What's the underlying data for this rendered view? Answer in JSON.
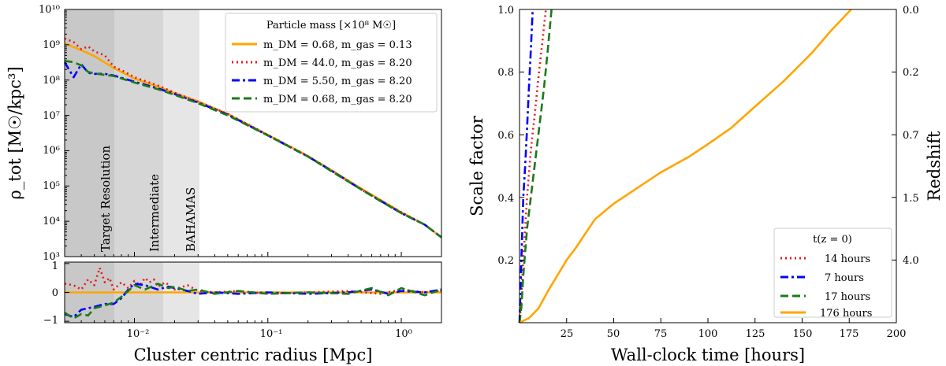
{
  "left_panel": {
    "ylabel": "ρ_tot [M☉/kpc³]",
    "xlabel": "Cluster centric radius [Mpc]",
    "ytick_labels": [
      "10³",
      "10⁴",
      "10⁵",
      "10⁶",
      "10⁷",
      "10⁸",
      "10⁹",
      "10¹⁰"
    ],
    "xtick_labels": [
      "10⁻²",
      "10⁻¹",
      "10⁰"
    ],
    "residual_ytick_labels": [
      "1",
      "0",
      "−1"
    ],
    "regions": [
      {
        "label": "Target Resolution",
        "x_range_mpc": [
          0.003,
          0.0075
        ],
        "color": "#c8c8c8"
      },
      {
        "label": "Intermediate",
        "x_range_mpc": [
          0.0075,
          0.0165
        ],
        "color": "#d6d6d6"
      },
      {
        "label": "BAHAMAS",
        "x_range_mpc": [
          0.0165,
          0.032
        ],
        "color": "#e6e6e6"
      }
    ],
    "legend": {
      "title": "Particle mass [×10⁸ M☉]",
      "entries": [
        "m_DM = 0.68, m_gas = 0.13",
        "m_DM = 44.0, m_gas = 8.20",
        "m_DM = 5.50, m_gas = 8.20",
        "m_DM = 0.68, m_gas = 8.20"
      ]
    }
  },
  "right_panel": {
    "ylabel_left": "Scale factor",
    "ylabel_right": "Redshift",
    "xlabel": "Wall-clock time [hours]",
    "xtick_labels": [
      "25",
      "50",
      "75",
      "100",
      "125",
      "150",
      "175",
      "200"
    ],
    "ytick_labels": [
      "0.2",
      "0.4",
      "0.6",
      "0.8",
      "1.0"
    ],
    "redshift_tick_labels": [
      "0.0",
      "0.2",
      "0.7",
      "1.5",
      "4.0"
    ],
    "legend": {
      "title": "t(z = 0)",
      "entries": [
        "14 hours",
        "7 hours",
        "17 hours",
        "176 hours"
      ]
    }
  },
  "colors": {
    "orange": "#ffa500",
    "red": "#e41a1c",
    "blue": "#0000ff",
    "green": "#1a7a1a"
  },
  "chart_data": [
    {
      "type": "line",
      "title": "",
      "xlabel": "Cluster centric radius [Mpc]",
      "ylabel": "ρ_tot [M☉/kpc³]",
      "xscale": "log",
      "yscale": "log",
      "xlim": [
        0.003,
        2.0
      ],
      "ylim": [
        1000,
        10000000000
      ],
      "legend_placement": "top-right",
      "series": [
        {
          "name": "m_DM = 0.68, m_gas = 0.13",
          "color": "orange",
          "style": "solid",
          "x": [
            0.003,
            0.004,
            0.005,
            0.007,
            0.01,
            0.015,
            0.02,
            0.03,
            0.05,
            0.1,
            0.2,
            0.3,
            0.5,
            0.7,
            1.0,
            1.5,
            2.0
          ],
          "y": [
            1100000000.0,
            700000000.0,
            480000000.0,
            220000000.0,
            110000000.0,
            65000000.0,
            43000000.0,
            25000000.0,
            11000000.0,
            2800000.0,
            700000.0,
            280000.0,
            85000.0,
            40000.0,
            18000.0,
            8000.0,
            3500.0
          ]
        },
        {
          "name": "m_DM = 44.0, m_gas = 8.20",
          "color": "red",
          "style": "dotted",
          "x": [
            0.003,
            0.0035,
            0.004,
            0.0045,
            0.005,
            0.006,
            0.007,
            0.0085,
            0.01,
            0.015,
            0.02,
            0.03,
            0.05,
            0.1,
            0.2,
            0.3,
            0.5,
            0.7,
            1.0,
            1.5,
            2.0
          ],
          "y": [
            1500000000.0,
            1200000000.0,
            750000000.0,
            900000000.0,
            650000000.0,
            500000000.0,
            240000000.0,
            170000000.0,
            120000000.0,
            70000000.0,
            44000000.0,
            24000000.0,
            11000000.0,
            2800000.0,
            700000.0,
            270000.0,
            80000.0,
            38000.0,
            18000.0,
            8000.0,
            3500.0
          ]
        },
        {
          "name": "m_DM = 5.50, m_gas = 8.20",
          "color": "blue",
          "style": "dashdot",
          "x": [
            0.003,
            0.0035,
            0.004,
            0.0045,
            0.005,
            0.006,
            0.007,
            0.01,
            0.015,
            0.02,
            0.03,
            0.05,
            0.1,
            0.2,
            0.3,
            0.5,
            0.7,
            1.0,
            1.5,
            2.0
          ],
          "y": [
            320000000.0,
            120000000.0,
            280000000.0,
            160000000.0,
            150000000.0,
            150000000.0,
            135000000.0,
            90000000.0,
            58000000.0,
            40000000.0,
            23000000.0,
            10500000.0,
            2700000.0,
            680000.0,
            270000.0,
            80000.0,
            38000.0,
            17000.0,
            8000.0,
            3500.0
          ]
        },
        {
          "name": "m_DM = 0.68, m_gas = 8.20",
          "color": "green",
          "style": "dashed",
          "x": [
            0.003,
            0.0035,
            0.004,
            0.0045,
            0.005,
            0.006,
            0.007,
            0.01,
            0.015,
            0.02,
            0.03,
            0.05,
            0.1,
            0.2,
            0.3,
            0.5,
            0.7,
            1.0,
            1.5,
            2.0
          ],
          "y": [
            350000000.0,
            320000000.0,
            260000000.0,
            170000000.0,
            155000000.0,
            140000000.0,
            130000000.0,
            85000000.0,
            55000000.0,
            38000000.0,
            22000000.0,
            10000000.0,
            2700000.0,
            680000.0,
            260000.0,
            80000.0,
            37000.0,
            17000.0,
            8000.0,
            3500.0
          ]
        }
      ]
    },
    {
      "type": "line",
      "title": "",
      "xlabel": "Cluster centric radius [Mpc]",
      "ylabel": "residual",
      "xscale": "log",
      "xlim": [
        0.003,
        2.0
      ],
      "ylim": [
        -1.05,
        1.05
      ],
      "series": [
        {
          "name": "m_DM = 0.68, m_gas = 0.13",
          "color": "orange",
          "style": "solid",
          "x": [
            0.003,
            2.0
          ],
          "y": [
            0,
            0
          ]
        },
        {
          "name": "m_DM = 44.0, m_gas = 8.20",
          "color": "red",
          "style": "dotted",
          "x": [
            0.003,
            0.0035,
            0.004,
            0.0045,
            0.005,
            0.0055,
            0.006,
            0.0065,
            0.007,
            0.008,
            0.009,
            0.01,
            0.011,
            0.012,
            0.013,
            0.014,
            0.015,
            0.017,
            0.02,
            0.025,
            0.03,
            0.04,
            0.06,
            0.1,
            0.2,
            0.4,
            0.7,
            1.0,
            1.5,
            2.0
          ],
          "y": [
            0.3,
            0.25,
            0.1,
            0.45,
            0.25,
            0.85,
            0.35,
            0.5,
            0.1,
            0.35,
            0.15,
            0.4,
            0.25,
            0.5,
            0.35,
            0.45,
            0.2,
            0.35,
            0.1,
            0.25,
            0.05,
            0.0,
            0.05,
            -0.05,
            0.0,
            0.05,
            -0.05,
            0.1,
            0.0,
            0.05
          ]
        },
        {
          "name": "m_DM = 5.50, m_gas = 8.20",
          "color": "blue",
          "style": "dashdot",
          "x": [
            0.003,
            0.0035,
            0.004,
            0.005,
            0.006,
            0.007,
            0.008,
            0.009,
            0.01,
            0.012,
            0.015,
            0.018,
            0.02,
            0.025,
            0.03,
            0.04,
            0.06,
            0.1,
            0.2,
            0.4,
            0.6,
            0.8,
            1.0,
            1.5,
            2.0
          ],
          "y": [
            -0.75,
            -0.85,
            -0.6,
            -0.5,
            -0.4,
            -0.4,
            -0.2,
            0.1,
            0.3,
            0.25,
            0.1,
            0.2,
            0.15,
            0.05,
            -0.05,
            0.0,
            -0.05,
            0.0,
            -0.05,
            0.0,
            0.1,
            -0.05,
            0.05,
            0.0,
            0.1
          ]
        },
        {
          "name": "m_DM = 0.68, m_gas = 8.20",
          "color": "green",
          "style": "dashed",
          "x": [
            0.003,
            0.0035,
            0.004,
            0.0045,
            0.005,
            0.006,
            0.007,
            0.008,
            0.009,
            0.01,
            0.012,
            0.015,
            0.018,
            0.02,
            0.025,
            0.03,
            0.04,
            0.06,
            0.1,
            0.2,
            0.4,
            0.6,
            0.8,
            1.0,
            1.5,
            2.0
          ],
          "y": [
            -0.7,
            -0.9,
            -0.75,
            -0.8,
            -0.55,
            -0.45,
            -0.35,
            -0.15,
            0.05,
            0.25,
            0.1,
            0.3,
            0.15,
            0.2,
            0.05,
            0.1,
            -0.05,
            0.05,
            -0.05,
            0.0,
            -0.05,
            0.15,
            -0.1,
            0.15,
            -0.1,
            0.1
          ]
        }
      ]
    },
    {
      "type": "line",
      "title": "",
      "xlabel": "Wall-clock time [hours]",
      "ylabel": "Scale factor",
      "xlim": [
        0,
        200
      ],
      "ylim": [
        0,
        1.0
      ],
      "legend_placement": "bottom-right",
      "secondary_ylabel": "Redshift",
      "series": [
        {
          "name": "14 hours",
          "color": "red",
          "style": "dotted",
          "x": [
            0,
            1,
            2,
            4,
            6,
            8,
            10,
            12,
            14
          ],
          "y": [
            0,
            0.08,
            0.2,
            0.4,
            0.55,
            0.66,
            0.78,
            0.89,
            1.0
          ]
        },
        {
          "name": "7 hours",
          "color": "blue",
          "style": "dashdot",
          "x": [
            0,
            0.5,
            1,
            2,
            3,
            4,
            5,
            6,
            7
          ],
          "y": [
            0,
            0.1,
            0.2,
            0.4,
            0.5,
            0.62,
            0.75,
            0.87,
            1.0
          ]
        },
        {
          "name": "17 hours",
          "color": "green",
          "style": "dashed",
          "x": [
            0,
            1,
            2,
            4,
            7,
            10,
            13,
            15,
            17
          ],
          "y": [
            0,
            0.05,
            0.15,
            0.3,
            0.45,
            0.6,
            0.75,
            0.87,
            1.0
          ]
        },
        {
          "name": "176 hours",
          "color": "orange",
          "style": "solid",
          "x": [
            0,
            5,
            10,
            15,
            20,
            25,
            30,
            40,
            50,
            60,
            75,
            90,
            100,
            112,
            125,
            140,
            155,
            165,
            176
          ],
          "y": [
            0,
            0.015,
            0.045,
            0.1,
            0.15,
            0.2,
            0.24,
            0.33,
            0.38,
            0.42,
            0.48,
            0.53,
            0.57,
            0.62,
            0.69,
            0.77,
            0.86,
            0.93,
            1.0
          ]
        }
      ]
    }
  ]
}
